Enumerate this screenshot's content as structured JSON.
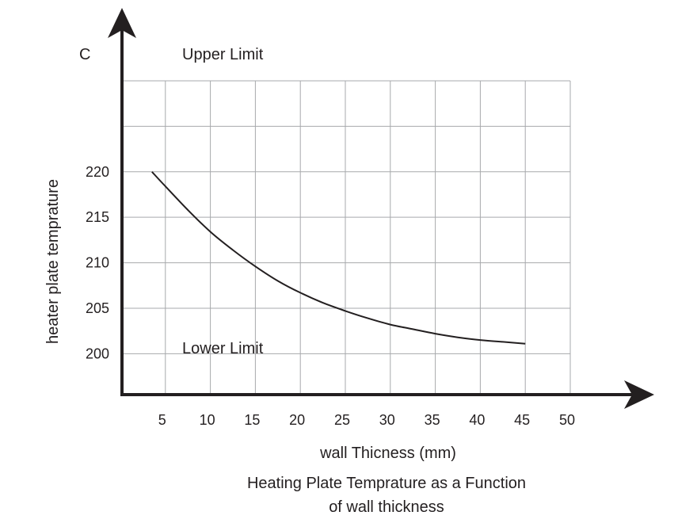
{
  "chart_data": {
    "type": "line",
    "title": "Heating Plate Temprature as a Function of wall thickness",
    "title_lines": [
      "Heating Plate Temprature as a Function",
      "of wall thickness"
    ],
    "xlabel": "wall Thicness (mm)",
    "ylabel": "heater plate temprature",
    "y_unit": "C",
    "x_ticks": [
      5,
      10,
      15,
      20,
      25,
      30,
      35,
      40,
      45,
      50
    ],
    "y_ticks": [
      200,
      205,
      210,
      215,
      220
    ],
    "xlim": [
      0,
      50
    ],
    "ylim": [
      195.5,
      230
    ],
    "grid": true,
    "annotations": {
      "upper_limit": "Upper Limit",
      "lower_limit": "Lower Limit"
    },
    "series": [
      {
        "x": [
          3.5,
          5,
          7.5,
          10,
          12.5,
          15,
          17.5,
          20,
          22.5,
          25,
          27.5,
          30,
          32.5,
          35,
          37.5,
          40,
          42.5,
          45
        ],
        "y": [
          220,
          218.4,
          215.8,
          213.4,
          211.4,
          209.6,
          208.0,
          206.7,
          205.6,
          204.7,
          203.9,
          203.2,
          202.7,
          202.2,
          201.8,
          201.5,
          201.3,
          201.1
        ]
      }
    ]
  }
}
